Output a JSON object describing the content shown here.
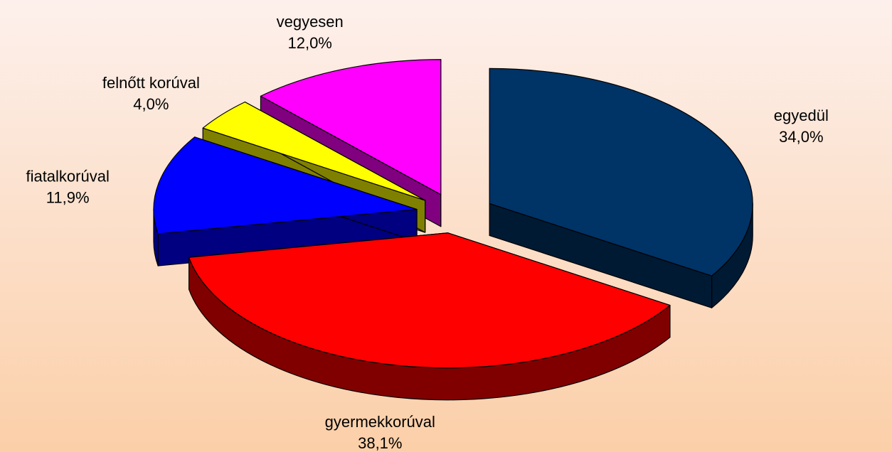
{
  "chart_data": {
    "type": "pie3d",
    "categories": [
      "egyedül",
      "gyermekkorúval",
      "fiatalkorúval",
      "felnőtt korúval",
      "vegyesen"
    ],
    "values": [
      34.0,
      38.1,
      11.9,
      4.0,
      12.0
    ],
    "value_labels": [
      "34,0%",
      "38,1%",
      "11,9%",
      "4,0%",
      "12,0%"
    ],
    "colors": [
      "#003366",
      "#ff0000",
      "#0000ff",
      "#ffff00",
      "#ff00ff"
    ]
  }
}
